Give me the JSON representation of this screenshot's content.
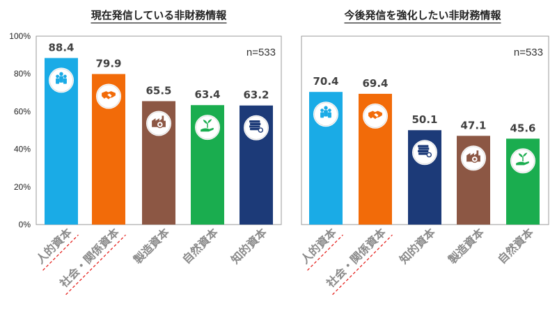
{
  "colors": {
    "human": "#1aabe6",
    "social": "#f26b09",
    "manufacturing": "#8c5744",
    "natural": "#1aad4f",
    "intellectual": "#1c3a78"
  },
  "chart_data": [
    {
      "type": "bar",
      "title": "現在発信している非財務情報",
      "n_label": "n=533",
      "categories": [
        "人的資本",
        "社会・関係資本",
        "製造資本",
        "自然資本",
        "知的資本"
      ],
      "values": [
        88.4,
        79.9,
        65.5,
        63.4,
        63.2
      ],
      "value_labels": [
        "88.4",
        "79.9",
        "65.5",
        "63.4",
        "63.2"
      ],
      "bar_colors": [
        "#1aabe6",
        "#f26b09",
        "#8c5744",
        "#1aad4f",
        "#1c3a78"
      ],
      "icons": [
        "people-icon",
        "handshake-icon",
        "factory-icon",
        "plant-hand-icon",
        "books-icon"
      ],
      "underlined": [
        true,
        true,
        false,
        false,
        false
      ],
      "ylim": [
        0,
        100
      ],
      "yticks": [
        "0%",
        "20%",
        "40%",
        "60%",
        "80%",
        "100%"
      ],
      "grid": false
    },
    {
      "type": "bar",
      "title": "今後発信を強化したい非財務情報",
      "n_label": "n=533",
      "categories": [
        "人的資本",
        "社会・関係資本",
        "知的資本",
        "製造資本",
        "自然資本"
      ],
      "values": [
        70.4,
        69.4,
        50.1,
        47.1,
        45.6
      ],
      "value_labels": [
        "70.4",
        "69.4",
        "50.1",
        "47.1",
        "45.6"
      ],
      "bar_colors": [
        "#1aabe6",
        "#f26b09",
        "#1c3a78",
        "#8c5744",
        "#1aad4f"
      ],
      "icons": [
        "people-icon",
        "handshake-icon",
        "books-icon",
        "factory-icon",
        "plant-hand-icon"
      ],
      "underlined": [
        true,
        true,
        false,
        false,
        false
      ],
      "ylim": [
        0,
        100
      ],
      "yticks": [],
      "grid": false
    }
  ]
}
